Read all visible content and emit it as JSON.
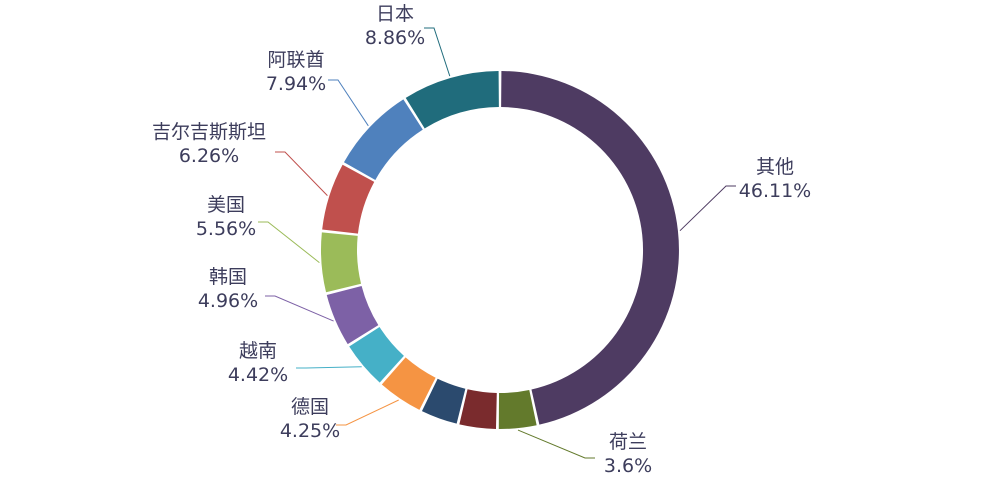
{
  "chart_data": {
    "type": "pie",
    "style": "donut",
    "slices": [
      {
        "name": "其他",
        "percent_label": "46.11%",
        "value": 46.11,
        "color": "#4e3b62",
        "labeled": true
      },
      {
        "name": "荷兰",
        "percent_label": "3.6%",
        "value": 3.6,
        "color": "#637a2c",
        "labeled": true
      },
      {
        "name": "",
        "percent_label": "",
        "value": 3.5,
        "color": "#7a2b2d",
        "labeled": false
      },
      {
        "name": "",
        "percent_label": "",
        "value": 3.5,
        "color": "#2b4a6e",
        "labeled": false
      },
      {
        "name": "德国",
        "percent_label": "4.25%",
        "value": 4.25,
        "color": "#f59443",
        "labeled": true
      },
      {
        "name": "越南",
        "percent_label": "4.42%",
        "value": 4.42,
        "color": "#45b0c7",
        "labeled": true
      },
      {
        "name": "韩国",
        "percent_label": "4.96%",
        "value": 4.96,
        "color": "#7d61a6",
        "labeled": true
      },
      {
        "name": "美国",
        "percent_label": "5.56%",
        "value": 5.56,
        "color": "#9bbb59",
        "labeled": true
      },
      {
        "name": "吉尔吉斯斯坦",
        "percent_label": "6.26%",
        "value": 6.26,
        "color": "#c0504d",
        "labeled": true
      },
      {
        "name": "阿联酋",
        "percent_label": "7.94%",
        "value": 7.94,
        "color": "#4f81bd",
        "labeled": true
      },
      {
        "name": "日本",
        "percent_label": "8.86%",
        "value": 8.86,
        "color": "#206c7c",
        "labeled": true
      }
    ],
    "legend": "none"
  }
}
